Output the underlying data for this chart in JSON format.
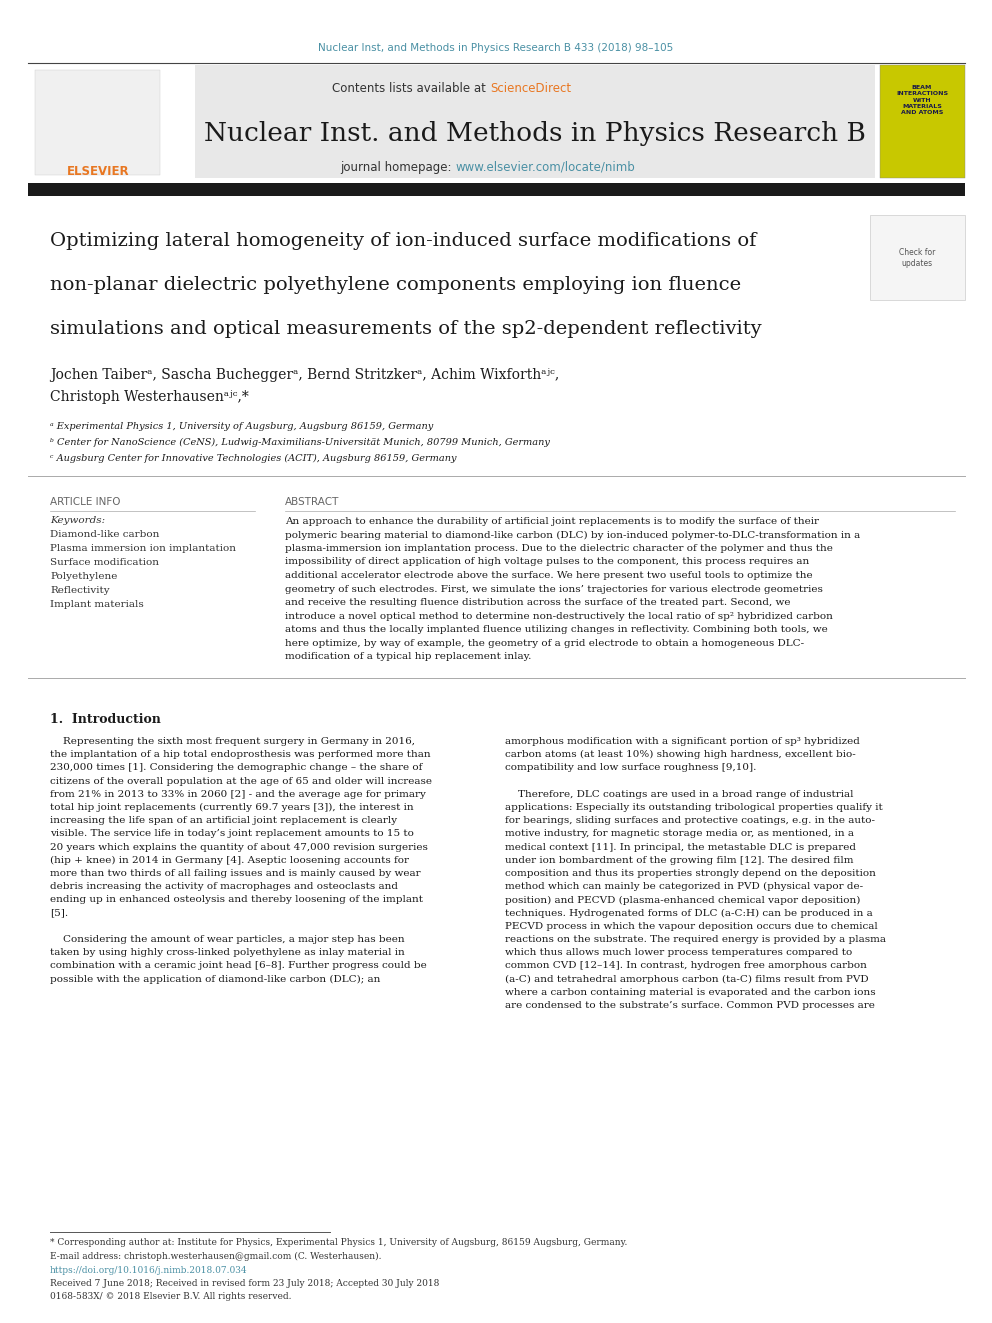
{
  "page_width": 9.92,
  "page_height": 13.23,
  "bg_color": "#ffffff",
  "top_citation": "Nuclear Inst, and Methods in Physics Research B 433 (2018) 98–105",
  "top_citation_color": "#4a90a4",
  "journal_name": "Nuclear Inst. and Methods in Physics Research B",
  "contents_text": "Contents lists available at ",
  "sciencedirect_text": "ScienceDirect",
  "sciencedirect_color": "#e87722",
  "journal_homepage_text": "journal homepage: ",
  "journal_url": "www.elsevier.com/locate/nimb",
  "journal_url_color": "#4a90a4",
  "header_bg": "#e8e8e8",
  "thick_bar_color": "#1a1a1a",
  "paper_title_lines": [
    "Optimizing lateral homogeneity of ion-induced surface modifications of",
    "non-planar dielectric polyethylene components employing ion fluence",
    "simulations and optical measurements of the sp2-dependent reflectivity"
  ],
  "authors_lines": [
    "Jochen Taiberᵃ, Sascha Bucheggerᵃ, Bernd Stritzkerᵃ, Achim Wixforthᵃʲᶜ,",
    "Christoph Westerhausenᵃʲᶜ,*"
  ],
  "affiliations": [
    "ᵃ Experimental Physics 1, University of Augsburg, Augsburg 86159, Germany",
    "ᵇ Center for NanoScience (CeNS), Ludwig-Maximilians-Universität Munich, 80799 Munich, Germany",
    "ᶜ Augsburg Center for Innovative Technologies (ACIT), Augsburg 86159, Germany"
  ],
  "article_info_title": "ARTICLE INFO",
  "keywords_label": "Keywords:",
  "keywords": [
    "Diamond-like carbon",
    "Plasma immersion ion implantation",
    "Surface modification",
    "Polyethylene",
    "Reflectivity",
    "Implant materials"
  ],
  "abstract_title": "ABSTRACT",
  "abstract_text": "An approach to enhance the durability of artificial joint replacements is to modify the surface of their polymeric bearing material to diamond-like carbon (DLC) by ion-induced polymer-to-DLC-transformation in a plasma-immersion ion implantation process. Due to the dielectric character of the polymer and thus the impossibility of direct application of high voltage pulses to the component, this process requires an additional accelerator electrode above the surface. We here present two useful tools to optimize the geometry of such electrodes. First, we simulate the ions’ trajectories for various electrode geometries and receive the resulting fluence distribution across the surface of the treated part. Second, we introduce a novel optical method to determine non-destructively the local ratio of sp² hybridized carbon atoms and thus the locally implanted fluence utilizing changes in reflectivity. Combining both tools, we here optimize, by way of example, the geometry of a grid electrode to obtain a homogeneous DLC-modification of a typical hip replacement inlay.",
  "intro_title": "1.  Introduction",
  "intro_col1_lines": [
    "    Representing the sixth most frequent surgery in Germany in 2016,",
    "the implantation of a hip total endoprosthesis was performed more than",
    "230,000 times [1]. Considering the demographic change – the share of",
    "citizens of the overall population at the age of 65 and older will increase",
    "from 21% in 2013 to 33% in 2060 [2] - and the average age for primary",
    "total hip joint replacements (currently 69.7 years [3]), the interest in",
    "increasing the life span of an artificial joint replacement is clearly",
    "visible. The service life in today’s joint replacement amounts to 15 to",
    "20 years which explains the quantity of about 47,000 revision surgeries",
    "(hip + knee) in 2014 in Germany [4]. Aseptic loosening accounts for",
    "more than two thirds of all failing issues and is mainly caused by wear",
    "debris increasing the activity of macrophages and osteoclasts and",
    "ending up in enhanced osteolysis and thereby loosening of the implant",
    "[5].",
    "",
    "    Considering the amount of wear particles, a major step has been",
    "taken by using highly cross-linked polyethylene as inlay material in",
    "combination with a ceramic joint head [6–8]. Further progress could be",
    "possible with the application of diamond-like carbon (DLC); an"
  ],
  "intro_col2_lines": [
    "amorphous modification with a significant portion of sp³ hybridized",
    "carbon atoms (at least 10%) showing high hardness, excellent bio-",
    "compatibility and low surface roughness [9,10].",
    "",
    "    Therefore, DLC coatings are used in a broad range of industrial",
    "applications: Especially its outstanding tribological properties qualify it",
    "for bearings, sliding surfaces and protective coatings, e.g. in the auto-",
    "motive industry, for magnetic storage media or, as mentioned, in a",
    "medical context [11]. In principal, the metastable DLC is prepared",
    "under ion bombardment of the growing film [12]. The desired film",
    "composition and thus its properties strongly depend on the deposition",
    "method which can mainly be categorized in PVD (physical vapor de-",
    "position) and PECVD (plasma-enhanced chemical vapor deposition)",
    "techniques. Hydrogenated forms of DLC (a-C:H) can be produced in a",
    "PECVD process in which the vapour deposition occurs due to chemical",
    "reactions on the substrate. The required energy is provided by a plasma",
    "which thus allows much lower process temperatures compared to",
    "common CVD [12–14]. In contrast, hydrogen free amorphous carbon",
    "(a-C) and tetrahedral amorphous carbon (ta-C) films result from PVD",
    "where a carbon containing material is evaporated and the carbon ions",
    "are condensed to the substrate’s surface. Common PVD processes are"
  ],
  "footnote_corresp": "* Corresponding author at: Institute for Physics, Experimental Physics 1, University of Augsburg, 86159 Augsburg, Germany.",
  "footnote_email": "E-mail address: christoph.westerhausen@gmail.com (C. Westerhausen).",
  "footnote_doi": "https://doi.org/10.1016/j.nimb.2018.07.034",
  "footnote_received": "Received 7 June 2018; Received in revised form 23 July 2018; Accepted 30 July 2018",
  "footnote_issn": "0168-583X/ © 2018 Elsevier B.V. All rights reserved.",
  "link_color": "#4a90a4",
  "text_color": "#000000",
  "ref_color": "#4a90a4"
}
